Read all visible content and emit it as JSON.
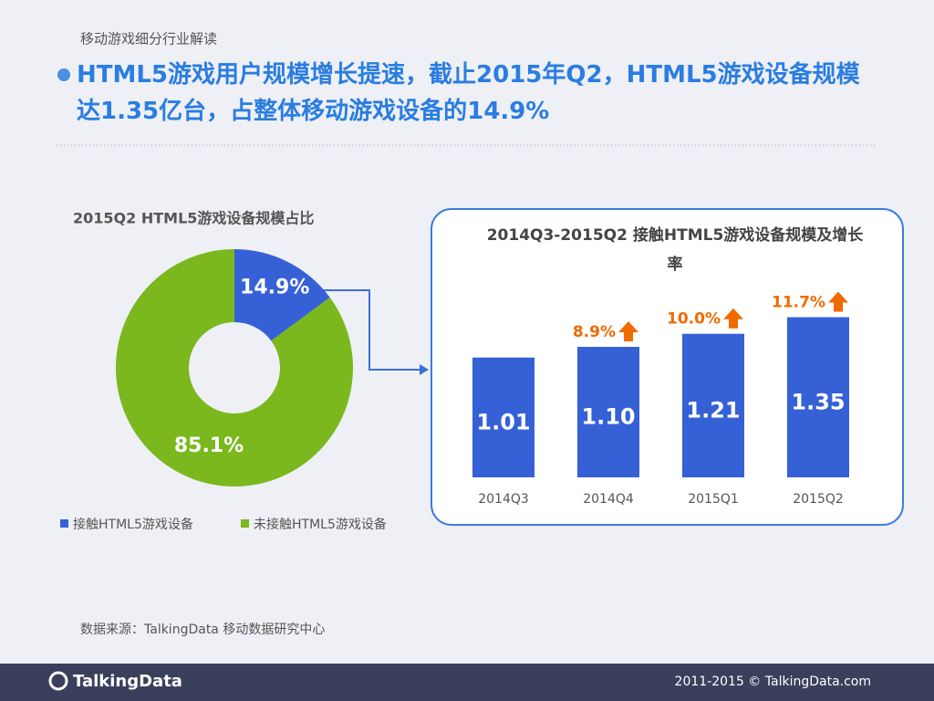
{
  "header": {
    "section": "移动游戏细分行业解读",
    "headline": "HTML5游戏用户规模增长提速，截止2015年Q2，HTML5游戏设备规模达1.35亿台，占整体移动游戏设备的14.9%"
  },
  "chart_data": [
    {
      "type": "donut",
      "title": "2015Q2 HTML5游戏设备规模占比",
      "categories": [
        "接触HTML5游戏设备",
        "未接触HTML5游戏设备"
      ],
      "values": [
        14.9,
        85.1
      ],
      "value_labels": [
        "14.9%",
        "85.1%"
      ],
      "colors": [
        "#3661d6",
        "#7ab81e"
      ]
    },
    {
      "type": "bar",
      "title": "2014Q3-2015Q2 接触HTML5游戏设备规模及增长率",
      "categories": [
        "2014Q3",
        "2014Q4",
        "2015Q1",
        "2015Q2"
      ],
      "values": [
        1.01,
        1.1,
        1.21,
        1.35
      ],
      "value_labels": [
        "1.01",
        "1.10",
        "1.21",
        "1.35"
      ],
      "growth_rates": [
        null,
        8.9,
        10.0,
        11.7
      ],
      "growth_labels": [
        null,
        "8.9%",
        "10.0%",
        "11.7%"
      ],
      "color": "#3661d6",
      "growth_color": "#f06a00"
    }
  ],
  "footer": {
    "source": "数据来源：TalkingData 移动数据研究中心",
    "logo": "TalkingData",
    "copyright": "2011-2015 © TalkingData.com"
  }
}
